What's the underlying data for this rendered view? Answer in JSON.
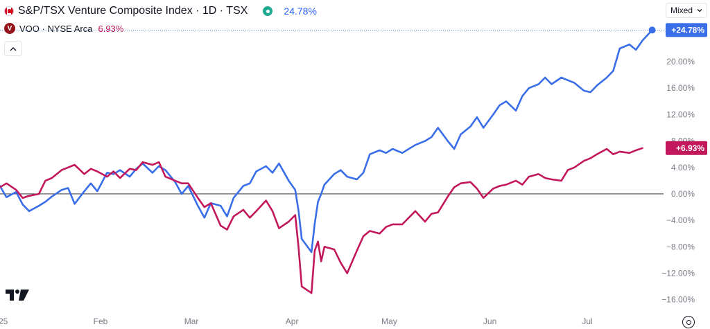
{
  "legend": {
    "main_symbol": "S&P/TSX Venture Composite Index · 1D · TSX",
    "main_value": "24.78%",
    "compare_symbol": "VOO · NYSE Arca",
    "compare_value": "6.93%",
    "compare_logo_letter": "V"
  },
  "controls": {
    "scale_mode": "Mixed",
    "collapse_icon": "chevron-up-icon",
    "settings_icon": "gear-icon"
  },
  "colors": {
    "main": "#3a6ee8",
    "compare": "#c2185b",
    "zero_line": "#131722",
    "axis_text": "#787b86"
  },
  "chart_data": {
    "type": "line",
    "title": "",
    "xlabel": "",
    "ylabel": "",
    "ylim": [
      -17.5,
      26.5
    ],
    "y_ticks": [
      20,
      16,
      12,
      8,
      4,
      0,
      -4,
      -8,
      -12,
      -16
    ],
    "y_tick_labels": [
      "20.00%",
      "16.00%",
      "12.00%",
      "8.00%",
      "4.00%",
      "0.00%",
      "−4.00%",
      "−8.00%",
      "−12.00%",
      "−16.00%"
    ],
    "x_tick_labels": [
      {
        "label": "25",
        "x": "2025-01-01"
      },
      {
        "label": "Feb",
        "x": "2025-02-01"
      },
      {
        "label": "Mar",
        "x": "2025-03-01"
      },
      {
        "label": "Apr",
        "x": "2025-04-01"
      },
      {
        "label": "May",
        "x": "2025-05-01"
      },
      {
        "label": "Jun",
        "x": "2025-06-01"
      },
      {
        "label": "Jul",
        "x": "2025-07-01"
      }
    ],
    "series": [
      {
        "name": "S&P/TSX Venture Composite Index",
        "last_label": "+24.78%",
        "points": [
          [
            "2025-01-01",
            1.2
          ],
          [
            "2025-01-03",
            -0.5
          ],
          [
            "2025-01-06",
            0.3
          ],
          [
            "2025-01-08",
            -1.6
          ],
          [
            "2025-01-10",
            -2.6
          ],
          [
            "2025-01-13",
            -1.8
          ],
          [
            "2025-01-15",
            -1.2
          ],
          [
            "2025-01-17",
            -0.4
          ],
          [
            "2025-01-20",
            0.6
          ],
          [
            "2025-01-22",
            0.9
          ],
          [
            "2025-01-24",
            -1.5
          ],
          [
            "2025-01-27",
            0.4
          ],
          [
            "2025-01-29",
            1.6
          ],
          [
            "2025-01-31",
            0.4
          ],
          [
            "2025-02-03",
            3.2
          ],
          [
            "2025-02-05",
            3.0
          ],
          [
            "2025-02-07",
            3.6
          ],
          [
            "2025-02-10",
            2.6
          ],
          [
            "2025-02-12",
            3.8
          ],
          [
            "2025-02-14",
            4.6
          ],
          [
            "2025-02-17",
            3.2
          ],
          [
            "2025-02-19",
            4.2
          ],
          [
            "2025-02-21",
            3.6
          ],
          [
            "2025-02-24",
            1.8
          ],
          [
            "2025-02-26",
            0.0
          ],
          [
            "2025-02-28",
            1.2
          ],
          [
            "2025-03-03",
            -1.8
          ],
          [
            "2025-03-05",
            -3.6
          ],
          [
            "2025-03-07",
            -1.4
          ],
          [
            "2025-03-10",
            -1.8
          ],
          [
            "2025-03-12",
            -3.4
          ],
          [
            "2025-03-14",
            -0.6
          ],
          [
            "2025-03-17",
            1.2
          ],
          [
            "2025-03-19",
            1.6
          ],
          [
            "2025-03-21",
            3.4
          ],
          [
            "2025-03-24",
            4.2
          ],
          [
            "2025-03-26",
            3.2
          ],
          [
            "2025-03-28",
            4.6
          ],
          [
            "2025-03-31",
            2.0
          ],
          [
            "2025-04-02",
            0.6
          ],
          [
            "2025-04-03",
            -2.5
          ],
          [
            "2025-04-04",
            -6.8
          ],
          [
            "2025-04-07",
            -8.8
          ],
          [
            "2025-04-08",
            -4.5
          ],
          [
            "2025-04-09",
            -1.2
          ],
          [
            "2025-04-10",
            0.0
          ],
          [
            "2025-04-11",
            1.4
          ],
          [
            "2025-04-14",
            3.0
          ],
          [
            "2025-04-16",
            3.6
          ],
          [
            "2025-04-18",
            2.6
          ],
          [
            "2025-04-21",
            2.2
          ],
          [
            "2025-04-23",
            3.2
          ],
          [
            "2025-04-25",
            6.0
          ],
          [
            "2025-04-28",
            6.6
          ],
          [
            "2025-04-30",
            6.2
          ],
          [
            "2025-05-02",
            6.8
          ],
          [
            "2025-05-05",
            6.2
          ],
          [
            "2025-05-07",
            6.8
          ],
          [
            "2025-05-09",
            7.4
          ],
          [
            "2025-05-12",
            8.0
          ],
          [
            "2025-05-14",
            8.6
          ],
          [
            "2025-05-16",
            10.0
          ],
          [
            "2025-05-19",
            8.0
          ],
          [
            "2025-05-21",
            6.8
          ],
          [
            "2025-05-23",
            9.0
          ],
          [
            "2025-05-26",
            10.2
          ],
          [
            "2025-05-28",
            11.6
          ],
          [
            "2025-05-30",
            10.0
          ],
          [
            "2025-06-02",
            12.0
          ],
          [
            "2025-06-04",
            13.4
          ],
          [
            "2025-06-06",
            14.0
          ],
          [
            "2025-06-09",
            12.6
          ],
          [
            "2025-06-11",
            14.8
          ],
          [
            "2025-06-13",
            16.0
          ],
          [
            "2025-06-16",
            16.6
          ],
          [
            "2025-06-18",
            17.6
          ],
          [
            "2025-06-20",
            16.6
          ],
          [
            "2025-06-23",
            17.6
          ],
          [
            "2025-06-25",
            17.2
          ],
          [
            "2025-06-27",
            16.8
          ],
          [
            "2025-06-30",
            15.6
          ],
          [
            "2025-07-02",
            15.4
          ],
          [
            "2025-07-04",
            16.4
          ],
          [
            "2025-07-07",
            17.6
          ],
          [
            "2025-07-09",
            18.6
          ],
          [
            "2025-07-11",
            22.0
          ],
          [
            "2025-07-14",
            22.6
          ],
          [
            "2025-07-16",
            21.8
          ],
          [
            "2025-07-18",
            23.2
          ],
          [
            "2025-07-21",
            24.78
          ]
        ]
      },
      {
        "name": "VOO",
        "last_label": "+6.93%",
        "points": [
          [
            "2025-01-01",
            1.0
          ],
          [
            "2025-01-03",
            1.6
          ],
          [
            "2025-01-06",
            0.6
          ],
          [
            "2025-01-08",
            -0.6
          ],
          [
            "2025-01-10",
            -0.3
          ],
          [
            "2025-01-13",
            0.0
          ],
          [
            "2025-01-15",
            2.0
          ],
          [
            "2025-01-17",
            2.4
          ],
          [
            "2025-01-20",
            3.6
          ],
          [
            "2025-01-22",
            4.0
          ],
          [
            "2025-01-24",
            4.4
          ],
          [
            "2025-01-27",
            3.0
          ],
          [
            "2025-01-29",
            3.8
          ],
          [
            "2025-01-31",
            3.4
          ],
          [
            "2025-02-03",
            2.6
          ],
          [
            "2025-02-05",
            3.4
          ],
          [
            "2025-02-07",
            2.4
          ],
          [
            "2025-02-10",
            3.8
          ],
          [
            "2025-02-12",
            3.6
          ],
          [
            "2025-02-14",
            4.8
          ],
          [
            "2025-02-17",
            4.4
          ],
          [
            "2025-02-19",
            4.8
          ],
          [
            "2025-02-21",
            2.6
          ],
          [
            "2025-02-24",
            2.0
          ],
          [
            "2025-02-26",
            1.6
          ],
          [
            "2025-02-28",
            1.6
          ],
          [
            "2025-03-03",
            -0.6
          ],
          [
            "2025-03-05",
            -2.0
          ],
          [
            "2025-03-07",
            -1.4
          ],
          [
            "2025-03-10",
            -4.8
          ],
          [
            "2025-03-12",
            -5.4
          ],
          [
            "2025-03-14",
            -3.4
          ],
          [
            "2025-03-17",
            -2.4
          ],
          [
            "2025-03-19",
            -3.6
          ],
          [
            "2025-03-21",
            -2.6
          ],
          [
            "2025-03-24",
            -1.0
          ],
          [
            "2025-03-26",
            -2.6
          ],
          [
            "2025-03-28",
            -5.2
          ],
          [
            "2025-03-31",
            -4.2
          ],
          [
            "2025-04-02",
            -3.2
          ],
          [
            "2025-04-03",
            -8.0
          ],
          [
            "2025-04-04",
            -14.0
          ],
          [
            "2025-04-07",
            -15.0
          ],
          [
            "2025-04-08",
            -8.6
          ],
          [
            "2025-04-09",
            -7.2
          ],
          [
            "2025-04-10",
            -10.2
          ],
          [
            "2025-04-11",
            -8.0
          ],
          [
            "2025-04-14",
            -8.4
          ],
          [
            "2025-04-16",
            -10.4
          ],
          [
            "2025-04-18",
            -12.0
          ],
          [
            "2025-04-21",
            -8.6
          ],
          [
            "2025-04-23",
            -6.4
          ],
          [
            "2025-04-25",
            -5.6
          ],
          [
            "2025-04-28",
            -6.0
          ],
          [
            "2025-04-30",
            -5.0
          ],
          [
            "2025-05-02",
            -4.6
          ],
          [
            "2025-05-05",
            -4.6
          ],
          [
            "2025-05-07",
            -3.6
          ],
          [
            "2025-05-09",
            -2.6
          ],
          [
            "2025-05-12",
            -4.2
          ],
          [
            "2025-05-14",
            -3.0
          ],
          [
            "2025-05-16",
            -2.8
          ],
          [
            "2025-05-19",
            -0.4
          ],
          [
            "2025-05-21",
            1.0
          ],
          [
            "2025-05-23",
            1.6
          ],
          [
            "2025-05-26",
            1.8
          ],
          [
            "2025-05-28",
            0.8
          ],
          [
            "2025-05-30",
            -0.6
          ],
          [
            "2025-06-02",
            0.8
          ],
          [
            "2025-06-04",
            1.2
          ],
          [
            "2025-06-06",
            1.4
          ],
          [
            "2025-06-09",
            2.0
          ],
          [
            "2025-06-11",
            1.4
          ],
          [
            "2025-06-13",
            2.6
          ],
          [
            "2025-06-16",
            3.0
          ],
          [
            "2025-06-18",
            2.4
          ],
          [
            "2025-06-20",
            2.2
          ],
          [
            "2025-06-23",
            2.0
          ],
          [
            "2025-06-25",
            3.6
          ],
          [
            "2025-06-27",
            4.0
          ],
          [
            "2025-06-30",
            5.0
          ],
          [
            "2025-07-02",
            5.4
          ],
          [
            "2025-07-04",
            6.0
          ],
          [
            "2025-07-07",
            6.8
          ],
          [
            "2025-07-09",
            6.0
          ],
          [
            "2025-07-11",
            6.4
          ],
          [
            "2025-07-14",
            6.2
          ],
          [
            "2025-07-16",
            6.6
          ],
          [
            "2025-07-18",
            6.93
          ]
        ]
      }
    ],
    "grid": false,
    "legend_position": "top-left"
  }
}
